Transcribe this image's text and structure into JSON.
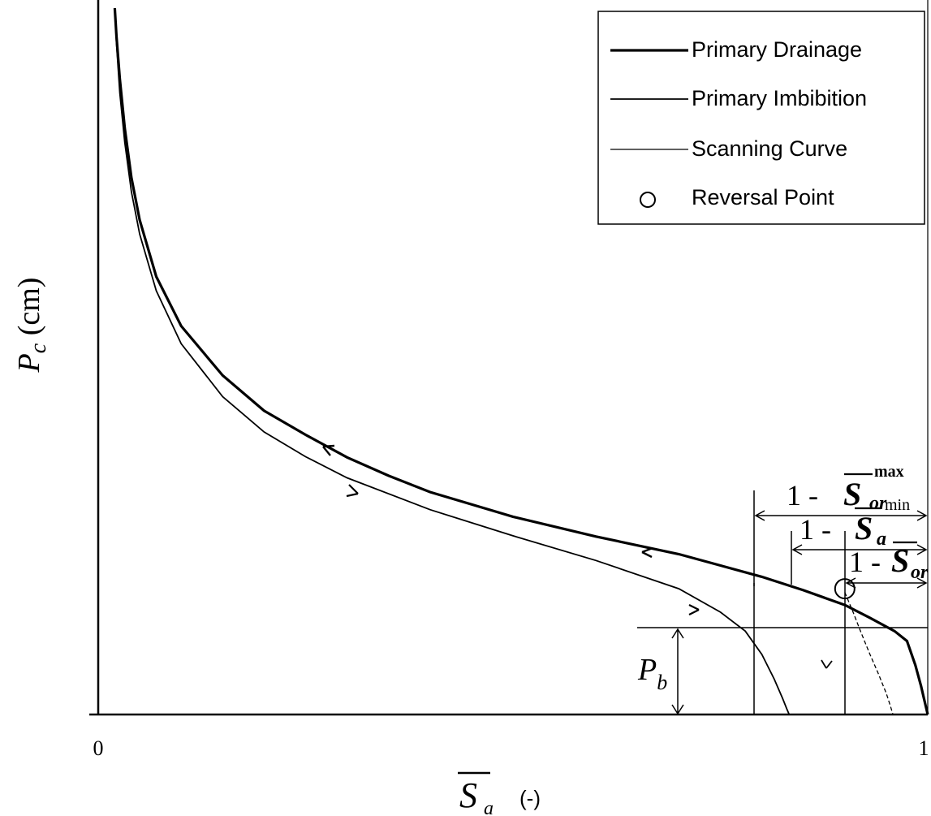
{
  "chart_data": {
    "type": "line",
    "xlim": [
      0,
      1
    ],
    "ylim": [
      0,
      100
    ],
    "x_tick_labels": [
      "0",
      "1"
    ],
    "y_axis_label": {
      "symbol": "P",
      "subscript": "c",
      "unit": "(cm)"
    },
    "x_axis_label": {
      "symbol": "S",
      "subscript": "a",
      "overbar": true,
      "unit": "(-)"
    },
    "grid": false,
    "legend_position": "top-right",
    "legend": [
      {
        "label": "Primary Drainage",
        "marker": "line"
      },
      {
        "label": "Primary Imbibition",
        "marker": "line"
      },
      {
        "label": "Scanning Curve",
        "marker": "line"
      },
      {
        "label": "Reversal Point",
        "marker": "circle"
      }
    ],
    "series": [
      {
        "name": "Primary Drainage",
        "x": [
          0.02,
          0.022,
          0.026,
          0.032,
          0.04,
          0.05,
          0.07,
          0.1,
          0.15,
          0.2,
          0.25,
          0.3,
          0.35,
          0.4,
          0.5,
          0.6,
          0.7,
          0.8,
          0.85,
          0.9,
          0.93,
          0.96,
          0.975,
          0.985,
          0.992,
          0.997,
          1.0
        ],
        "y": [
          100,
          96,
          90,
          83,
          76,
          70,
          62,
          55,
          48,
          43,
          39.6,
          36.4,
          33.8,
          31.5,
          28,
          25.2,
          22.7,
          19.5,
          17.6,
          15.5,
          13.7,
          11.8,
          10.4,
          7,
          4,
          1.5,
          0
        ]
      },
      {
        "name": "Primary Imbibition",
        "x": [
          0.02,
          0.022,
          0.026,
          0.032,
          0.04,
          0.05,
          0.07,
          0.1,
          0.15,
          0.2,
          0.25,
          0.3,
          0.4,
          0.5,
          0.6,
          0.7,
          0.75,
          0.78,
          0.8,
          0.815,
          0.825,
          0.83,
          0.833
        ],
        "y": [
          100,
          95,
          88,
          81,
          74,
          68,
          60,
          52.5,
          45,
          40,
          36.5,
          33.5,
          29,
          25.3,
          21.8,
          17.8,
          14.5,
          11.8,
          8.5,
          5,
          2.3,
          0.8,
          0
        ]
      },
      {
        "name": "Scanning Curve",
        "x": [
          0.9,
          0.91,
          0.92,
          0.93,
          0.94,
          0.95,
          0.955,
          0.958
        ],
        "y": [
          17.3,
          14.5,
          11.5,
          8.6,
          5.9,
          3,
          1.2,
          0
        ]
      }
    ],
    "reversal_point": {
      "x": 0.9,
      "y": 17.8
    },
    "annotations": {
      "pb_label": "P",
      "pb_sub": "b",
      "sor_max_prefix": "1 - ",
      "sor_max_symbol": "S",
      "sor_max_sub": "or",
      "sor_max_sup": "max",
      "sa_min_prefix": "1 - ",
      "sa_min_symbol": "S",
      "sa_min_sub": "a",
      "sa_min_sup": "min",
      "sor_prefix": "1 -",
      "sor_symbol": "S",
      "sor_sub": "or"
    },
    "entry_pressure_pb": 11.2,
    "sor_max_x": 0.833,
    "sa_min_x": 0.9,
    "sor_x": 0.958
  }
}
